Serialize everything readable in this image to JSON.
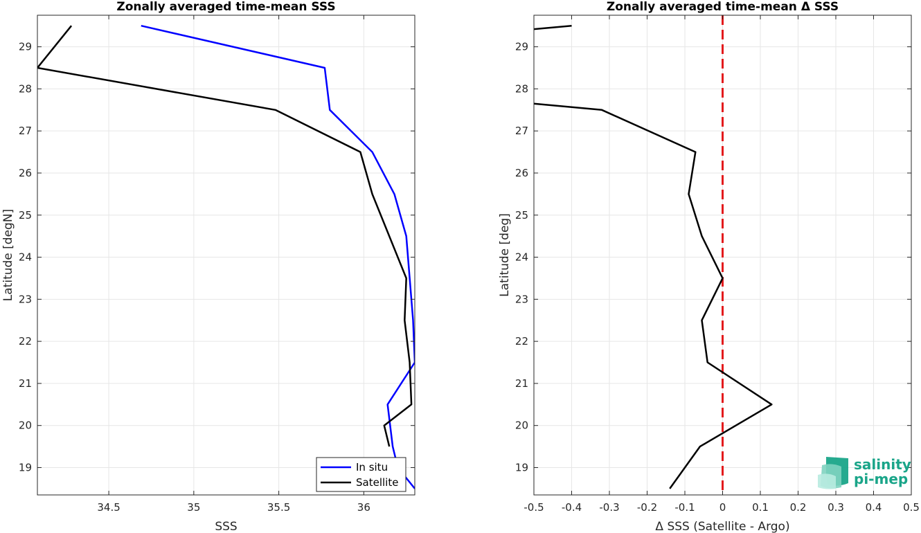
{
  "chart_data": [
    {
      "type": "line",
      "title": "Zonally averaged time-mean SSS",
      "xlabel": "SSS",
      "ylabel": "Latitude [degN]",
      "xlim": [
        34.08,
        36.3
      ],
      "ylim": [
        18.35,
        29.75
      ],
      "xticks": [
        34.5,
        35,
        35.5,
        36
      ],
      "xtick_labels": [
        "34.5",
        "35",
        "35.5",
        "36"
      ],
      "yticks": [
        19,
        20,
        21,
        22,
        23,
        24,
        25,
        26,
        27,
        28,
        29
      ],
      "ytick_labels": [
        "19",
        "20",
        "21",
        "22",
        "23",
        "24",
        "25",
        "26",
        "27",
        "28",
        "29"
      ],
      "grid": true,
      "legend_position": "bottom-right",
      "series": [
        {
          "name": "In situ",
          "color": "#0000ff",
          "x": [
            36.3,
            36.2,
            36.17,
            36.14,
            36.3,
            36.29,
            36.27,
            36.25,
            36.18,
            36.05,
            35.8,
            35.77,
            34.69
          ],
          "y": [
            18.5,
            19.0,
            19.5,
            20.5,
            21.5,
            22.5,
            23.5,
            24.5,
            25.5,
            26.5,
            27.5,
            28.5,
            29.5
          ]
        },
        {
          "name": "Satellite",
          "color": "#000000",
          "x": [
            36.15,
            36.12,
            36.28,
            36.27,
            36.24,
            36.25,
            36.05,
            35.98,
            35.48,
            34.08,
            34.28
          ],
          "y": [
            19.5,
            20.0,
            20.5,
            21.5,
            22.5,
            23.5,
            25.5,
            26.5,
            27.5,
            28.5,
            29.5
          ]
        }
      ]
    },
    {
      "type": "line",
      "title": "Zonally averaged time-mean Δ SSS",
      "xlabel": "Δ SSS (Satellite - Argo)",
      "ylabel": "Latitude [deg]",
      "xlim": [
        -0.5,
        0.5
      ],
      "ylim": [
        18.35,
        29.75
      ],
      "xticks": [
        -0.5,
        -0.4,
        -0.3,
        -0.2,
        -0.1,
        0,
        0.1,
        0.2,
        0.3,
        0.4,
        0.5
      ],
      "xtick_labels": [
        "-0.5",
        "-0.4",
        "-0.3",
        "-0.2",
        "-0.1",
        "0",
        "0.1",
        "0.2",
        "0.3",
        "0.4",
        "0.5"
      ],
      "yticks": [
        19,
        20,
        21,
        22,
        23,
        24,
        25,
        26,
        27,
        28,
        29
      ],
      "ytick_labels": [
        "19",
        "20",
        "21",
        "22",
        "23",
        "24",
        "25",
        "26",
        "27",
        "28",
        "29"
      ],
      "grid": true,
      "reference_line": {
        "x": 0,
        "color": "#e31a1c",
        "style": "dashed"
      },
      "series": [
        {
          "color": "#000000",
          "x": [
            -0.14,
            -0.06,
            0.13,
            -0.04,
            -0.055,
            0.0,
            -0.055,
            -0.09,
            -0.072,
            -0.32,
            -0.5
          ],
          "y": [
            18.5,
            19.5,
            20.5,
            21.5,
            22.5,
            23.5,
            24.5,
            25.5,
            26.5,
            27.5,
            27.65
          ]
        },
        {
          "color": "#000000",
          "x": [
            -0.5,
            -0.4
          ],
          "y": [
            29.42,
            29.5
          ]
        }
      ]
    }
  ],
  "logo": {
    "line1": "salinity",
    "line2": "pi-mep",
    "color": "#1aa589"
  }
}
